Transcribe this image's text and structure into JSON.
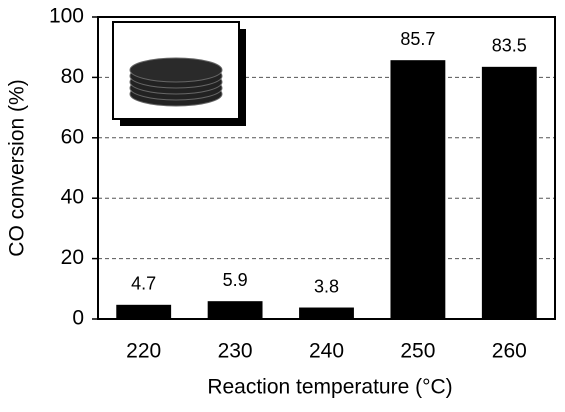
{
  "chart_data": {
    "type": "bar",
    "categories": [
      "220",
      "230",
      "240",
      "250",
      "260"
    ],
    "values": [
      4.7,
      5.9,
      3.8,
      85.7,
      83.5
    ],
    "color": "#000000",
    "xlabel": "Reaction temperature (°C)",
    "ylabel": "CO conversion (%)",
    "ylim": [
      0,
      100
    ],
    "yticks": [
      0,
      20,
      40,
      60,
      80,
      100
    ],
    "grid": true
  }
}
